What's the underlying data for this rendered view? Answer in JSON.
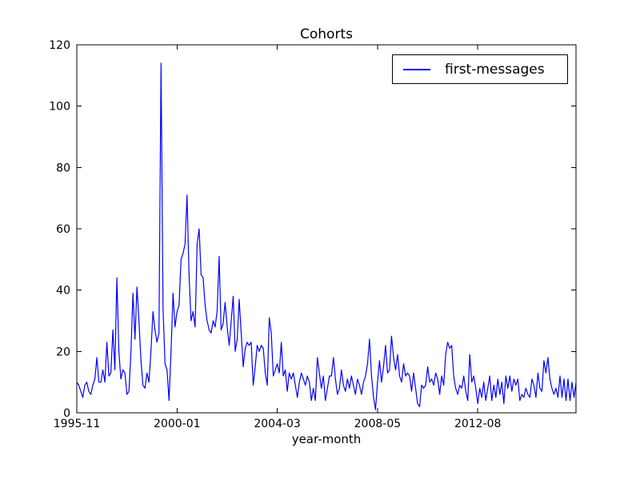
{
  "chart_data": {
    "type": "line",
    "title": "Cohorts",
    "xlabel": "year-month",
    "ylabel": "",
    "grid": false,
    "ylim": [
      0,
      120
    ],
    "yticks": [
      0,
      20,
      40,
      60,
      80,
      100,
      120
    ],
    "xticks": [
      {
        "index": 0,
        "label": "1995-11"
      },
      {
        "index": 50,
        "label": "2000-01"
      },
      {
        "index": 100,
        "label": "2004-03"
      },
      {
        "index": 150,
        "label": "2008-05"
      },
      {
        "index": 200,
        "label": "2012-08"
      }
    ],
    "legend": {
      "position": "upper right"
    },
    "line_color": "#0000ff",
    "series": [
      {
        "name": "first-messages",
        "values": [
          10,
          9,
          7,
          5,
          9,
          10,
          7,
          6,
          9,
          11,
          18,
          10,
          10,
          14,
          10,
          23,
          12,
          13,
          27,
          14,
          44,
          20,
          11,
          14,
          13,
          6,
          7,
          20,
          39,
          24,
          41,
          30,
          17,
          9,
          8,
          13,
          10,
          20,
          33,
          27,
          23,
          26,
          114,
          34,
          16,
          14,
          4,
          20,
          39,
          28,
          33,
          35,
          50,
          52,
          55,
          71,
          45,
          30,
          33,
          28,
          55,
          60,
          45,
          44,
          35,
          30,
          27,
          26,
          30,
          28,
          33,
          51,
          27,
          29,
          36,
          28,
          22,
          30,
          38,
          20,
          24,
          37,
          26,
          15,
          21,
          23,
          22,
          23,
          9,
          15,
          22,
          20,
          22,
          21,
          13,
          9,
          31,
          26,
          12,
          14,
          16,
          13,
          23,
          12,
          14,
          7,
          13,
          11,
          13,
          9,
          5,
          10,
          13,
          11,
          9,
          12,
          10,
          4,
          8,
          4,
          18,
          13,
          8,
          12,
          4,
          8,
          12,
          12,
          18,
          11,
          6,
          8,
          14,
          9,
          7,
          11,
          8,
          12,
          9,
          6,
          11,
          9,
          6,
          10,
          12,
          16,
          24,
          12,
          5,
          1,
          10,
          17,
          10,
          15,
          22,
          13,
          14,
          25,
          18,
          14,
          19,
          12,
          10,
          16,
          12,
          13,
          12,
          7,
          13,
          8,
          3,
          2,
          9,
          8,
          9,
          15,
          10,
          11,
          9,
          13,
          11,
          6,
          12,
          9,
          19,
          23,
          21,
          22,
          12,
          8,
          6,
          9,
          8,
          12,
          7,
          4,
          19,
          10,
          12,
          8,
          3,
          8,
          5,
          10,
          4,
          8,
          12,
          4,
          9,
          5,
          11,
          6,
          10,
          3,
          12,
          8,
          12,
          7,
          11,
          9,
          11,
          4,
          6,
          5,
          8,
          6,
          5,
          11,
          9,
          5,
          13,
          8,
          7,
          17,
          13,
          18,
          11,
          8,
          6,
          8,
          5,
          12,
          5,
          11,
          4,
          11,
          4,
          10,
          5,
          10
        ]
      }
    ]
  }
}
